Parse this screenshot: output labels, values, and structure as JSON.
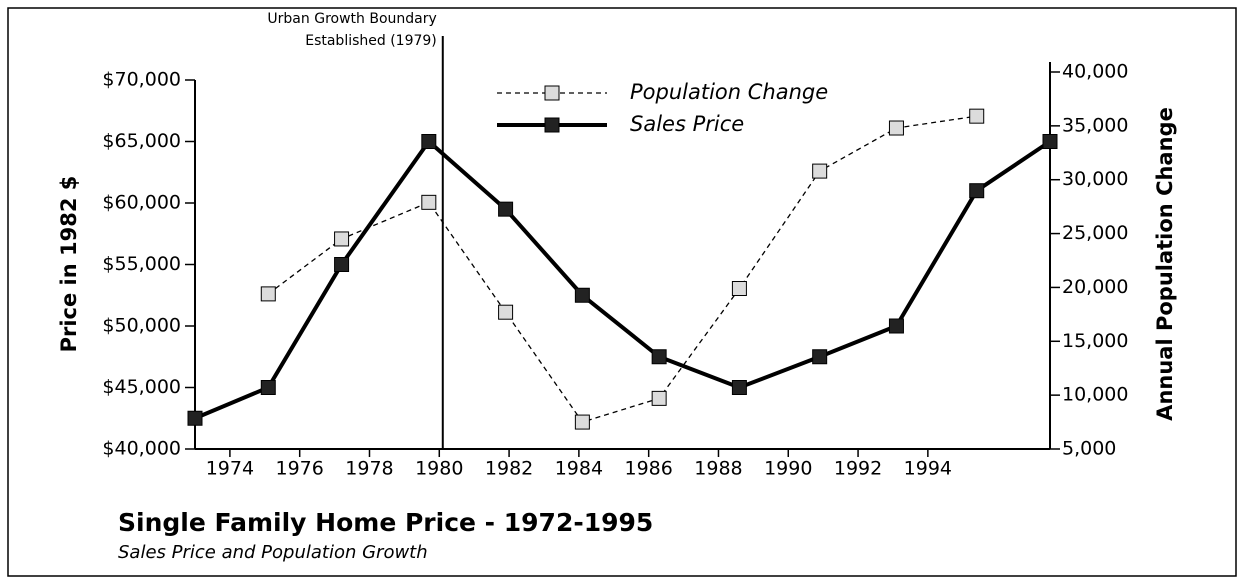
{
  "chart_data": {
    "type": "line",
    "title": "Single Family Home Price - 1972-1995",
    "subtitle": "Sales Price and Population Growth",
    "y_label": "Price in 1982 $",
    "y2_label": "Annual Population Change",
    "annotation": {
      "lines": [
        "Urban Growth Boundary",
        "Established (1979)"
      ],
      "x": 1980.1
    },
    "xlim": [
      1973,
      1997.5
    ],
    "xticks": [
      1974,
      1976,
      1978,
      1980,
      1982,
      1984,
      1986,
      1988,
      1990,
      1992,
      1994
    ],
    "ylim": [
      40000,
      70000
    ],
    "yticks": [
      {
        "value": 40000,
        "label": "$40,000"
      },
      {
        "value": 45000,
        "label": "$45,000"
      },
      {
        "value": 50000,
        "label": "$50,000"
      },
      {
        "value": 55000,
        "label": "$55,000"
      },
      {
        "value": 60000,
        "label": "$60,000"
      },
      {
        "value": 65000,
        "label": "$65,000"
      },
      {
        "value": 70000,
        "label": "$70,000"
      }
    ],
    "y2lim": [
      5000,
      40000
    ],
    "y2ticks": [
      {
        "value": 5000,
        "label": "5,000"
      },
      {
        "value": 10000,
        "label": "10,000"
      },
      {
        "value": 15000,
        "label": "15,000"
      },
      {
        "value": 20000,
        "label": "20,000"
      },
      {
        "value": 25000,
        "label": "25,000"
      },
      {
        "value": 30000,
        "label": "30,000"
      },
      {
        "value": 35000,
        "label": "35,000"
      },
      {
        "value": 40000,
        "label": "40,000"
      }
    ],
    "legend": "top-center",
    "series": [
      {
        "name": "Population Change",
        "color": "#dcdcdc",
        "dashed": true,
        "axis": "y2",
        "x": [
          1975.1,
          1977.2,
          1979.7,
          1981.9,
          1984.1,
          1986.3,
          1988.6,
          1990.9,
          1993.1,
          1995.4
        ],
        "values": [
          19400,
          24500,
          27900,
          17700,
          7500,
          9700,
          19900,
          30800,
          34800,
          35900
        ]
      },
      {
        "name": "Sales Price",
        "color": "#222222",
        "dashed": false,
        "axis": "y",
        "x": [
          1973,
          1975.1,
          1977.2,
          1979.7,
          1981.9,
          1984.1,
          1986.3,
          1988.6,
          1990.9,
          1993.1,
          1995.4,
          1997.5
        ],
        "values": [
          42500,
          45000,
          55000,
          65000,
          59500,
          52500,
          47500,
          45000,
          47500,
          50000,
          61000,
          65000
        ]
      }
    ]
  }
}
